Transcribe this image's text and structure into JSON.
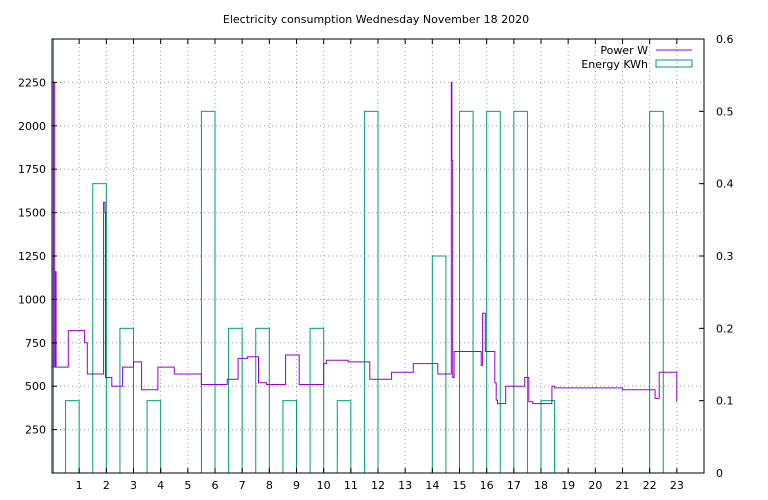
{
  "chart_data": {
    "type": "bar+line",
    "title": "Electricity consumption Wednesday November 18 2020",
    "xlim": [
      0,
      24
    ],
    "ylim": [
      0,
      2500
    ],
    "y2lim": [
      0,
      0.6
    ],
    "grid": true,
    "legend_position": "top-right",
    "x_ticks": [
      1,
      2,
      3,
      4,
      5,
      6,
      7,
      8,
      9,
      10,
      11,
      12,
      13,
      14,
      15,
      16,
      17,
      18,
      19,
      20,
      21,
      22,
      23
    ],
    "y_ticks": [
      250,
      500,
      750,
      1000,
      1250,
      1500,
      1750,
      2000,
      2250
    ],
    "y2_ticks": [
      0,
      0.1,
      0.2,
      0.3,
      0.4,
      0.5,
      0.6
    ],
    "series": [
      {
        "name": "Power W",
        "kind": "line",
        "axis": "y",
        "color": "#9400d3",
        "points": [
          [
            0.0,
            610
          ],
          [
            0.05,
            610
          ],
          [
            0.05,
            2250
          ],
          [
            0.1,
            2250
          ],
          [
            0.1,
            610
          ],
          [
            0.13,
            610
          ],
          [
            0.13,
            1160
          ],
          [
            0.15,
            1160
          ],
          [
            0.15,
            610
          ],
          [
            0.6,
            610
          ],
          [
            0.6,
            820
          ],
          [
            1.2,
            820
          ],
          [
            1.2,
            750
          ],
          [
            1.3,
            750
          ],
          [
            1.3,
            570
          ],
          [
            1.9,
            570
          ],
          [
            1.9,
            1560
          ],
          [
            1.95,
            1560
          ],
          [
            1.95,
            1500
          ],
          [
            1.97,
            1500
          ],
          [
            1.97,
            550
          ],
          [
            2.05,
            550
          ],
          [
            2.05,
            550
          ],
          [
            2.2,
            550
          ],
          [
            2.2,
            500
          ],
          [
            2.6,
            500
          ],
          [
            2.6,
            610
          ],
          [
            3.0,
            610
          ],
          [
            3.0,
            640
          ],
          [
            3.3,
            640
          ],
          [
            3.3,
            480
          ],
          [
            3.9,
            480
          ],
          [
            3.9,
            610
          ],
          [
            4.5,
            610
          ],
          [
            4.5,
            570
          ],
          [
            5.5,
            570
          ],
          [
            5.5,
            510
          ],
          [
            6.45,
            510
          ],
          [
            6.45,
            540
          ],
          [
            6.85,
            540
          ],
          [
            6.85,
            660
          ],
          [
            7.2,
            660
          ],
          [
            7.2,
            670
          ],
          [
            7.6,
            670
          ],
          [
            7.6,
            520
          ],
          [
            7.9,
            520
          ],
          [
            7.9,
            510
          ],
          [
            8.6,
            510
          ],
          [
            8.6,
            680
          ],
          [
            9.1,
            680
          ],
          [
            9.1,
            510
          ],
          [
            10.0,
            510
          ],
          [
            10.0,
            630
          ],
          [
            10.1,
            630
          ],
          [
            10.1,
            650
          ],
          [
            10.9,
            650
          ],
          [
            10.9,
            640
          ],
          [
            11.7,
            640
          ],
          [
            11.7,
            540
          ],
          [
            12.5,
            540
          ],
          [
            12.5,
            580
          ],
          [
            13.3,
            580
          ],
          [
            13.3,
            630
          ],
          [
            14.2,
            630
          ],
          [
            14.2,
            570
          ],
          [
            14.7,
            570
          ],
          [
            14.7,
            2250
          ],
          [
            14.72,
            2250
          ],
          [
            14.72,
            1800
          ],
          [
            14.75,
            1800
          ],
          [
            14.75,
            550
          ],
          [
            14.8,
            550
          ],
          [
            14.8,
            700
          ],
          [
            15.8,
            700
          ],
          [
            15.8,
            620
          ],
          [
            15.85,
            620
          ],
          [
            15.85,
            920
          ],
          [
            15.95,
            920
          ],
          [
            15.95,
            700
          ],
          [
            16.3,
            700
          ],
          [
            16.3,
            520
          ],
          [
            16.35,
            520
          ],
          [
            16.35,
            420
          ],
          [
            16.4,
            420
          ],
          [
            16.4,
            400
          ],
          [
            16.7,
            400
          ],
          [
            16.7,
            500
          ],
          [
            17.4,
            500
          ],
          [
            17.4,
            550
          ],
          [
            17.55,
            550
          ],
          [
            17.55,
            410
          ],
          [
            17.7,
            410
          ],
          [
            17.7,
            400
          ],
          [
            18.4,
            400
          ],
          [
            18.4,
            500
          ],
          [
            18.5,
            500
          ],
          [
            18.5,
            490
          ],
          [
            21.0,
            490
          ],
          [
            21.0,
            480
          ],
          [
            22.2,
            480
          ],
          [
            22.2,
            430
          ],
          [
            22.35,
            430
          ],
          [
            22.35,
            580
          ],
          [
            23.0,
            580
          ],
          [
            23.0,
            410
          ]
        ]
      },
      {
        "name": "Energy KWh",
        "kind": "bar",
        "axis": "y2",
        "color": "#009e73",
        "bars": [
          [
            0.0,
            0.05,
            0.6
          ],
          [
            0.5,
            1.0,
            0.1
          ],
          [
            1.5,
            2.0,
            0.4
          ],
          [
            2.5,
            3.0,
            0.2
          ],
          [
            3.5,
            4.0,
            0.1
          ],
          [
            5.5,
            6.0,
            0.5
          ],
          [
            6.5,
            7.0,
            0.2
          ],
          [
            7.5,
            8.0,
            0.2
          ],
          [
            8.5,
            9.0,
            0.1
          ],
          [
            9.5,
            10.0,
            0.2
          ],
          [
            10.5,
            11.0,
            0.1
          ],
          [
            11.5,
            12.0,
            0.5
          ],
          [
            14.0,
            14.5,
            0.3
          ],
          [
            15.0,
            15.5,
            0.5
          ],
          [
            16.0,
            16.5,
            0.5
          ],
          [
            17.0,
            17.5,
            0.5
          ],
          [
            18.0,
            18.5,
            0.1
          ],
          [
            22.0,
            22.5,
            0.5
          ]
        ]
      }
    ]
  }
}
